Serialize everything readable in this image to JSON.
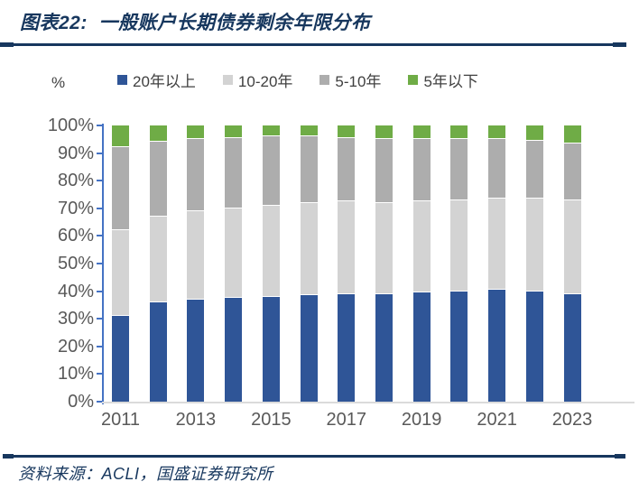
{
  "header": {
    "title": "图表22:  一般账户长期债券剩余年限分布"
  },
  "chart": {
    "percent_label": "%"
  },
  "chart_data": {
    "type": "bar",
    "stacked": true,
    "title": "一般账户长期债券剩余年限分布",
    "categories": [
      "2011",
      "2012",
      "2013",
      "2014",
      "2015",
      "2016",
      "2017",
      "2018",
      "2019",
      "2020",
      "2021",
      "2022",
      "2023"
    ],
    "x_tick_labels": [
      "2011",
      "2013",
      "2015",
      "2017",
      "2019",
      "2021",
      "2023"
    ],
    "y_ticks": [
      "100%",
      "90%",
      "80%",
      "70%",
      "60%",
      "50%",
      "40%",
      "30%",
      "20%",
      "10%",
      "0%"
    ],
    "ylim": [
      0,
      100
    ],
    "ylabel": "%",
    "grid": false,
    "legend_position": "top",
    "series": [
      {
        "name": "20年以上",
        "color": "#2F5597",
        "values": [
          31,
          36,
          37,
          37.5,
          38,
          38.5,
          39,
          39,
          39.5,
          40,
          40.5,
          40,
          39
        ]
      },
      {
        "name": "10-20年",
        "color": "#D3D3D3",
        "values": [
          31,
          31,
          32,
          32.5,
          33,
          33.5,
          33.5,
          33,
          33,
          33,
          33,
          33.5,
          34
        ]
      },
      {
        "name": "5-10年",
        "color": "#ADADAD",
        "values": [
          30,
          27,
          26,
          25.5,
          25,
          24,
          23,
          23,
          22.5,
          22,
          21.5,
          21,
          20.5
        ]
      },
      {
        "name": "5年以下",
        "color": "#6FAC46",
        "values": [
          8,
          6,
          5,
          4.5,
          4,
          4,
          4.5,
          5,
          5,
          5,
          5,
          5.5,
          6.5
        ]
      }
    ]
  },
  "footer": {
    "source": "资料来源：ACLI，国盛证券研究所"
  },
  "colors": {
    "deep_blue": "#17375E",
    "axis_blue": "#4472C4",
    "axis_label_gray": "#595959",
    "legend_text_gray": "#404040",
    "x_axis_line_gray": "#DBDBDB"
  }
}
